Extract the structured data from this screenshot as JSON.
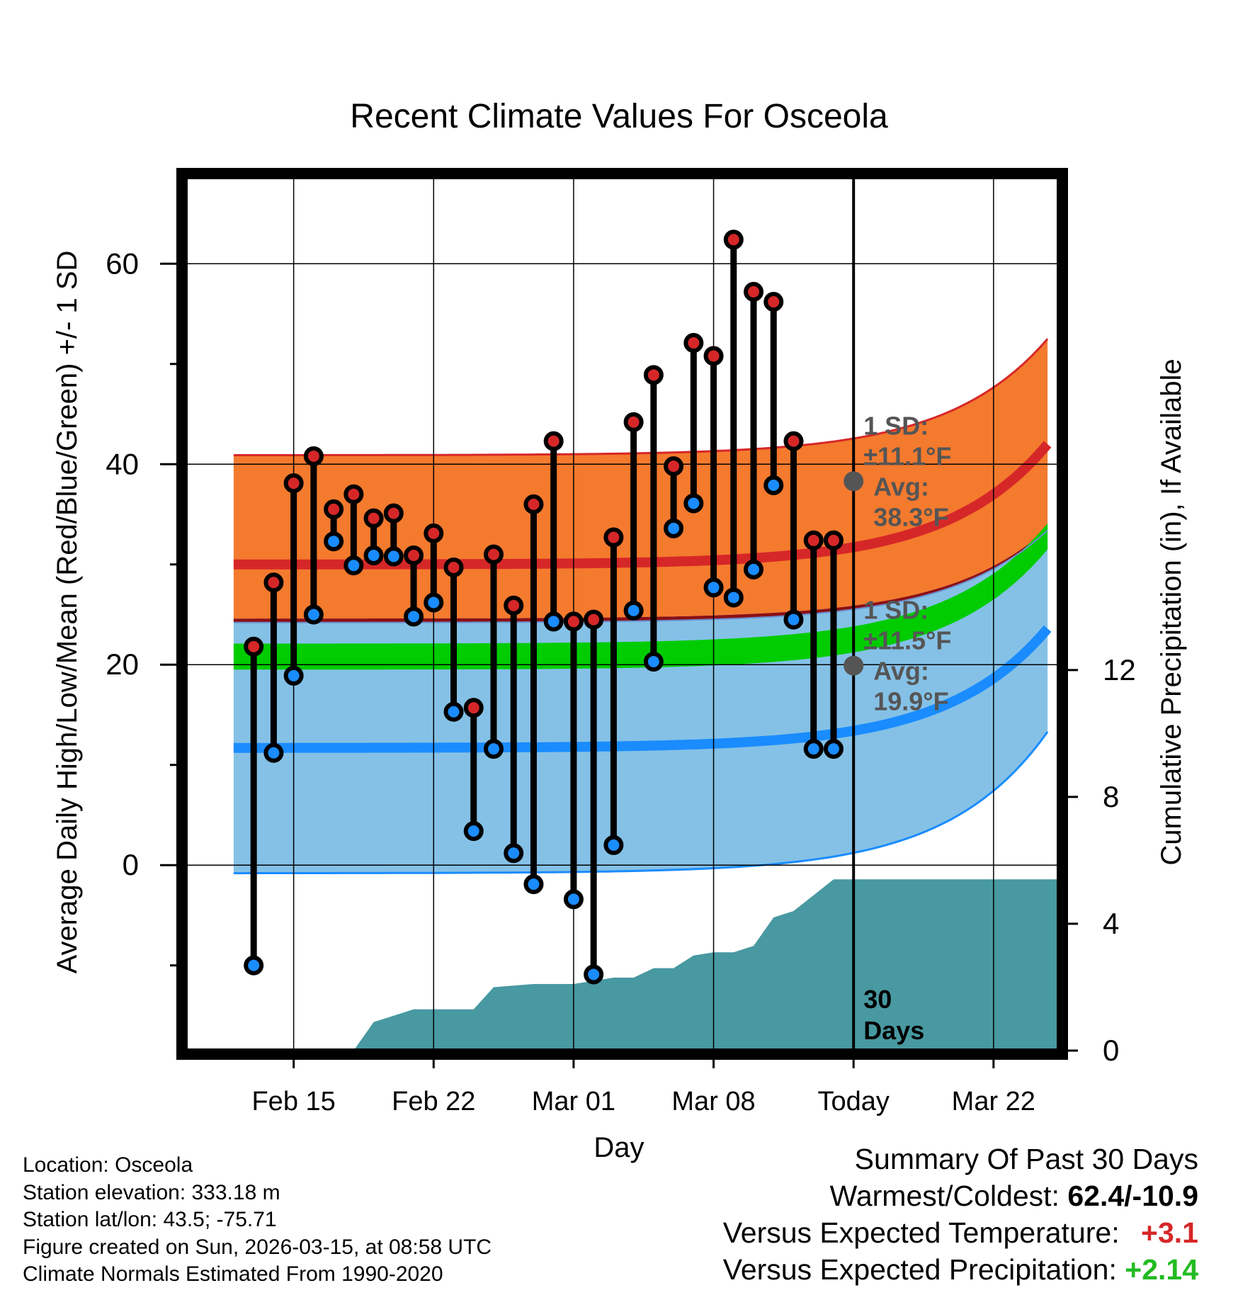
{
  "chart_data": {
    "type": "line",
    "title": "Recent Climate Values For Osceola",
    "xlabel": "Day",
    "ylabel": "Average Daily High/Low/Mean (Red/Blue/Green) +/- 1 SD",
    "y2label": "Cumulative Precipitation (in), If Available",
    "x_range": [
      -33.3,
      10.3
    ],
    "ylim": [
      -18.5,
      68.5
    ],
    "y2lim": [
      0,
      27.5
    ],
    "y_ticks": [
      0,
      20,
      40,
      60
    ],
    "y2_ticks": [
      0,
      4,
      8,
      12
    ],
    "x_ticks": [
      {
        "day": -28,
        "label": "Feb 15"
      },
      {
        "day": -21,
        "label": "Feb 22"
      },
      {
        "day": -14,
        "label": "Mar 01"
      },
      {
        "day": -7,
        "label": "Mar 08"
      },
      {
        "day": 0,
        "label": "Today"
      },
      {
        "day": 7,
        "label": "Mar 22"
      }
    ],
    "observations": {
      "day_start": -30,
      "highs": [
        21.8,
        28.2,
        38.1,
        40.8,
        35.5,
        37.0,
        34.6,
        35.1,
        30.9,
        33.1,
        29.7,
        15.7,
        31.0,
        25.9,
        36.0,
        42.3,
        24.3,
        24.5,
        32.7,
        44.2,
        48.9,
        39.8,
        52.1,
        50.8,
        62.4,
        57.2,
        56.2,
        42.3,
        32.4,
        32.4
      ],
      "lows": [
        -10.0,
        11.2,
        18.9,
        25.0,
        32.3,
        29.9,
        30.9,
        30.8,
        24.8,
        26.2,
        15.3,
        3.4,
        11.6,
        1.2,
        -1.9,
        24.3,
        -3.4,
        -10.9,
        2.0,
        25.4,
        20.3,
        33.6,
        36.1,
        27.7,
        26.7,
        29.5,
        37.9,
        24.5,
        11.6,
        11.6
      ]
    },
    "normals": {
      "day_start": -31,
      "day_end": 9.7,
      "mean_high": [
        30.0,
        42.0
      ],
      "mean_low": [
        11.7,
        23.6
      ],
      "mean_avg": [
        20.8,
        32.8
      ],
      "high_plus_sd": [
        40.9,
        52.5
      ],
      "high_minus_sd": [
        24.6,
        33.6
      ],
      "low_plus_sd": [
        24.2,
        33.4
      ],
      "low_minus_sd": [
        -0.8,
        13.3
      ]
    },
    "precipitation": {
      "days": [
        -30,
        -25,
        -24,
        -23,
        -22,
        -21,
        -20,
        -19,
        -18,
        -17,
        -16,
        -15,
        -14,
        -13,
        -12,
        -11,
        -10,
        -9,
        -8,
        -7,
        -6,
        -5,
        -4,
        -3,
        -2,
        -1,
        0,
        10.3
      ],
      "cumulative": [
        0,
        0,
        0.9,
        1.1,
        1.3,
        1.3,
        1.3,
        1.3,
        2.0,
        2.05,
        2.1,
        2.1,
        2.1,
        2.2,
        2.3,
        2.3,
        2.6,
        2.6,
        3.0,
        3.1,
        3.1,
        3.3,
        4.2,
        4.4,
        4.9,
        5.4,
        5.4,
        5.4
      ]
    },
    "annotations": {
      "high_sd_label": "1 SD:",
      "high_sd_value": "±11.1°F",
      "high_avg_label": "Avg:",
      "high_avg_value": "38.3°F",
      "high_avg_marker": 38.3,
      "low_sd_label": "1 SD:",
      "low_sd_value": "±11.5°F",
      "low_avg_label": "Avg:",
      "low_avg_value": "19.9°F",
      "low_avg_marker": 19.9,
      "days_count": "30",
      "days_label": "Days"
    },
    "colors": {
      "high_band": "#f47a2e",
      "high_line": "#d62728",
      "overlap_band": "#8b1014",
      "mean_band": "#00cc00",
      "low_band": "#85c1e6",
      "low_line": "#1a8cff",
      "precip": "#4899a1",
      "high_marker": "#d62728",
      "low_marker": "#1a8cff",
      "annotation": "#555555"
    }
  },
  "info": {
    "location": "Location: Osceola",
    "elevation": "Station elevation: 333.18 m",
    "latlon": "Station lat/lon: 43.5; -75.71",
    "created": "Figure created on Sun, 2026-03-15, at 08:58 UTC",
    "normals": "Climate Normals Estimated From 1990-2020"
  },
  "summary": {
    "heading": "Summary Of Past 30 Days",
    "warmest_label": "Warmest/Coldest:",
    "warmest_value": "62.4/-10.9",
    "temp_label": "Versus Expected Temperature:",
    "temp_value": "+3.1",
    "temp_color": "#d62728",
    "precip_label": "Versus Expected Precipitation:",
    "precip_value": "+2.14",
    "precip_color": "#22bb22"
  }
}
